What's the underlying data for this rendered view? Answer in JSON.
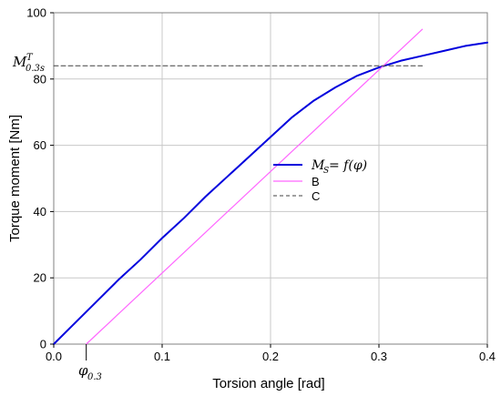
{
  "chart_data": {
    "type": "line",
    "xlabel": "Torsion angle  [rad]",
    "ylabel": "Torque moment  [Nm]",
    "xlim": [
      0,
      0.4
    ],
    "ylim": [
      0,
      100
    ],
    "x_ticks": [
      "0.0",
      "0.1",
      "0.2",
      "0.3",
      "0.4"
    ],
    "y_ticks": [
      "0",
      "20",
      "40",
      "60",
      "80",
      "100"
    ],
    "grid": true,
    "legend_position": "center-right",
    "series": [
      {
        "name": "M_S = f(φ)",
        "color": "#0000dd",
        "style": "solid",
        "x": [
          0,
          0.02,
          0.04,
          0.06,
          0.08,
          0.1,
          0.12,
          0.14,
          0.16,
          0.18,
          0.2,
          0.22,
          0.24,
          0.26,
          0.28,
          0.3,
          0.32,
          0.34,
          0.36,
          0.38,
          0.4
        ],
        "y": [
          0,
          6.5,
          13,
          19.5,
          25.5,
          32,
          38,
          44.5,
          50.5,
          56.5,
          62.5,
          68.5,
          73.5,
          77.5,
          81,
          83.5,
          85.5,
          87,
          88.5,
          90,
          91
        ]
      },
      {
        "name": "B",
        "color": "#ff66ff",
        "style": "solid",
        "x": [
          0.03,
          0.34
        ],
        "y": [
          0,
          95
        ]
      },
      {
        "name": "C",
        "color": "#404040",
        "style": "dashed",
        "x": [
          0,
          0.34
        ],
        "y": [
          84,
          84
        ]
      }
    ],
    "annotations": {
      "y_marker": {
        "base": "M",
        "sup": "T",
        "sub": "0.3s",
        "value": 84
      },
      "x_marker": {
        "base": "φ",
        "sub": "0.3",
        "value": 0.03
      }
    },
    "legend": {
      "blue_base": "M",
      "blue_sub": "S",
      "blue_rest": " = f(φ)",
      "b_label": "B",
      "c_label": "C"
    }
  }
}
